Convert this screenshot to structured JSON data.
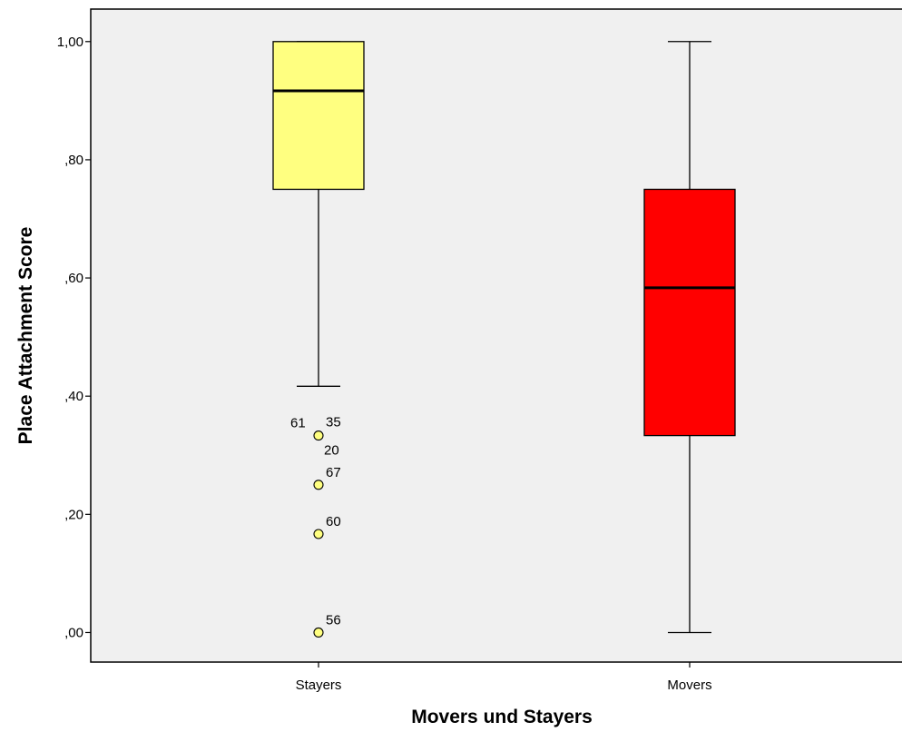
{
  "chart_data": {
    "type": "box",
    "title": "",
    "xlabel": "Movers und Stayers",
    "ylabel": "Place Attachment Score",
    "ylim": [
      -0.05,
      1.055
    ],
    "yticks": [
      {
        "value": 0.0,
        "label": ",00"
      },
      {
        "value": 0.2,
        "label": ",20"
      },
      {
        "value": 0.4,
        "label": ",40"
      },
      {
        "value": 0.6,
        "label": ",60"
      },
      {
        "value": 0.8,
        "label": ",80"
      },
      {
        "value": 1.0,
        "label": "1,00"
      }
    ],
    "grid": false,
    "legend": "none",
    "plot_background": "#f0f0f0",
    "categories": [
      "Stayers",
      "Movers"
    ],
    "boxes": [
      {
        "category": "Stayers",
        "color": "#ffff80",
        "whisker_low": 0.4167,
        "q1": 0.75,
        "median": 0.9167,
        "q3": 1.0,
        "whisker_high": 1.0,
        "outliers": [
          {
            "value": 0.3333,
            "labels": [
              "61",
              "35",
              "20"
            ]
          },
          {
            "value": 0.25,
            "labels": [
              "67"
            ]
          },
          {
            "value": 0.1667,
            "labels": [
              "60"
            ]
          },
          {
            "value": 0.0,
            "labels": [
              "56"
            ]
          }
        ]
      },
      {
        "category": "Movers",
        "color": "#ff0000",
        "whisker_low": 0.0,
        "q1": 0.3333,
        "median": 0.5833,
        "q3": 0.75,
        "whisker_high": 1.0,
        "outliers": []
      }
    ]
  }
}
